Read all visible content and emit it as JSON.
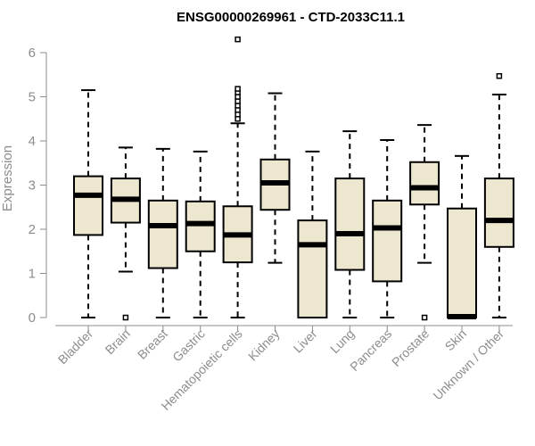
{
  "chart_data": {
    "type": "boxplot",
    "title": "ENSG00000269961 - CTD-2033C11.1",
    "xlabel": "",
    "ylabel": "Expression",
    "ylim": [
      0,
      6.2
    ],
    "yticks": [
      0,
      1,
      2,
      3,
      4,
      5,
      6
    ],
    "box_color": "#ede7cf",
    "categories": [
      "Bladder",
      "Brain",
      "Breast",
      "Gastric",
      "Hematopoietic cells",
      "Kidney",
      "Liver",
      "Lung",
      "Pancreas",
      "Prostate",
      "Skin",
      "Unknown / Other"
    ],
    "boxes": [
      {
        "category": "Bladder",
        "min": 0,
        "q1": 1.87,
        "median": 2.77,
        "q3": 3.2,
        "max": 5.15,
        "outliers": []
      },
      {
        "category": "Brain",
        "min": 1.04,
        "q1": 2.15,
        "median": 2.68,
        "q3": 3.15,
        "max": 3.85,
        "outliers": [
          0
        ]
      },
      {
        "category": "Breast",
        "min": 0,
        "q1": 1.12,
        "median": 2.08,
        "q3": 2.65,
        "max": 3.82,
        "outliers": []
      },
      {
        "category": "Gastric",
        "min": 0,
        "q1": 1.5,
        "median": 2.13,
        "q3": 2.63,
        "max": 3.76,
        "outliers": []
      },
      {
        "category": "Hematopoietic cells",
        "min": 0,
        "q1": 1.25,
        "median": 1.87,
        "q3": 2.52,
        "max": 4.4,
        "outliers": [
          4.5,
          4.6,
          4.7,
          4.8,
          4.9,
          5.0,
          5.1,
          5.18,
          6.3
        ]
      },
      {
        "category": "Kidney",
        "min": 1.24,
        "q1": 2.44,
        "median": 3.05,
        "q3": 3.58,
        "max": 5.08,
        "outliers": []
      },
      {
        "category": "Liver",
        "min": 0,
        "q1": 0,
        "median": 1.65,
        "q3": 2.2,
        "max": 3.76,
        "outliers": []
      },
      {
        "category": "Lung",
        "min": 0,
        "q1": 1.08,
        "median": 1.9,
        "q3": 3.15,
        "max": 4.22,
        "outliers": []
      },
      {
        "category": "Pancreas",
        "min": 0,
        "q1": 0.82,
        "median": 2.03,
        "q3": 2.65,
        "max": 4.02,
        "outliers": []
      },
      {
        "category": "Prostate",
        "min": 1.24,
        "q1": 2.56,
        "median": 2.94,
        "q3": 3.52,
        "max": 4.36,
        "outliers": [
          0
        ]
      },
      {
        "category": "Skin",
        "min": 0,
        "q1": 0,
        "median": 0.02,
        "q3": 2.47,
        "max": 3.66,
        "outliers": []
      },
      {
        "category": "Unknown / Other",
        "min": 0,
        "q1": 1.6,
        "median": 2.2,
        "q3": 3.15,
        "max": 5.05,
        "outliers": [
          5.47
        ]
      }
    ]
  }
}
